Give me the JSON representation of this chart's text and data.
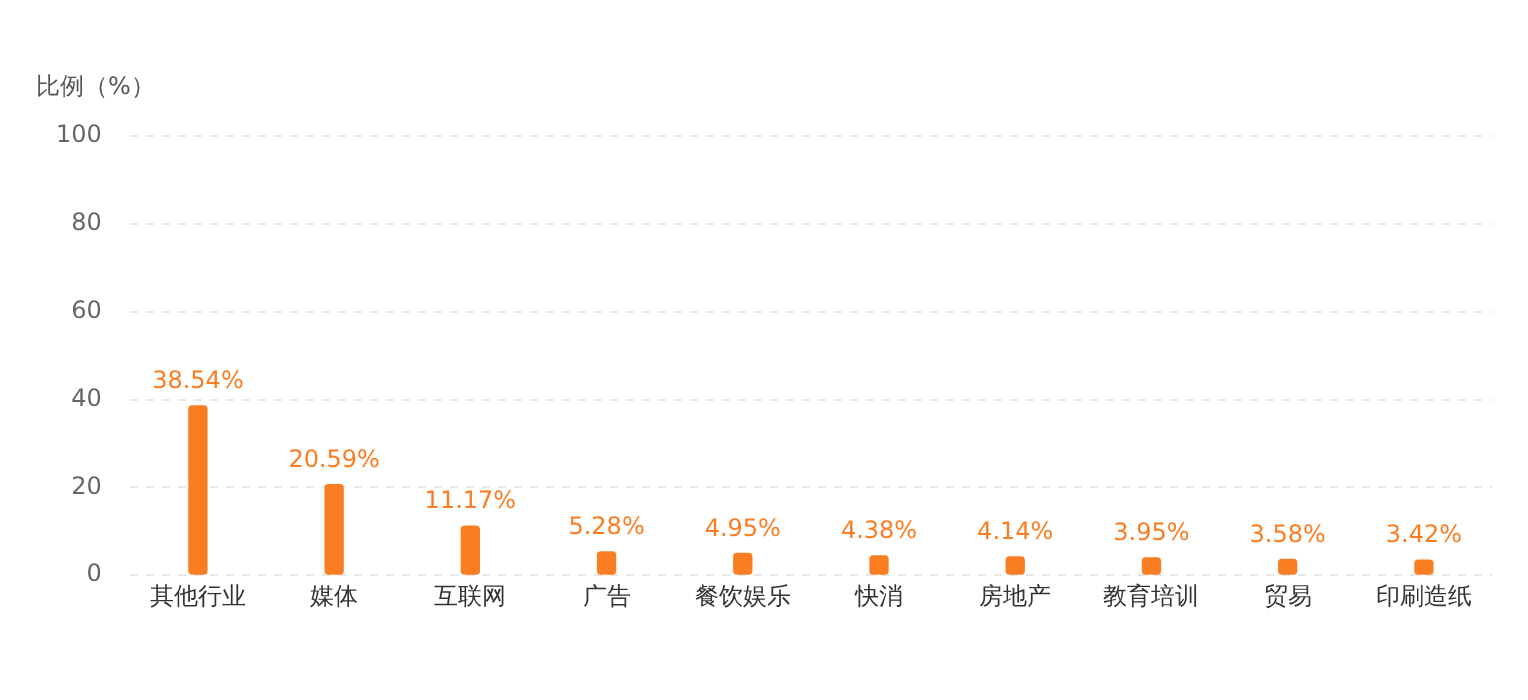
{
  "chart_data": {
    "type": "bar",
    "ylabel": "比例（%）",
    "categories": [
      "其他行业",
      "媒体",
      "互联网",
      "广告",
      "餐饮娱乐",
      "快消",
      "房地产",
      "教育培训",
      "贸易",
      "印刷造纸"
    ],
    "values": [
      38.54,
      20.59,
      11.17,
      5.28,
      4.95,
      4.38,
      4.14,
      3.95,
      3.58,
      3.42
    ],
    "value_labels": [
      "38.54%",
      "20.59%",
      "11.17%",
      "5.28%",
      "4.95%",
      "4.38%",
      "4.14%",
      "3.95%",
      "3.58%",
      "3.42%"
    ],
    "color": "#fa7d22",
    "ylim": [
      0,
      100
    ],
    "yticks": [
      0,
      20,
      40,
      60,
      80,
      100
    ],
    "grid": "y"
  }
}
